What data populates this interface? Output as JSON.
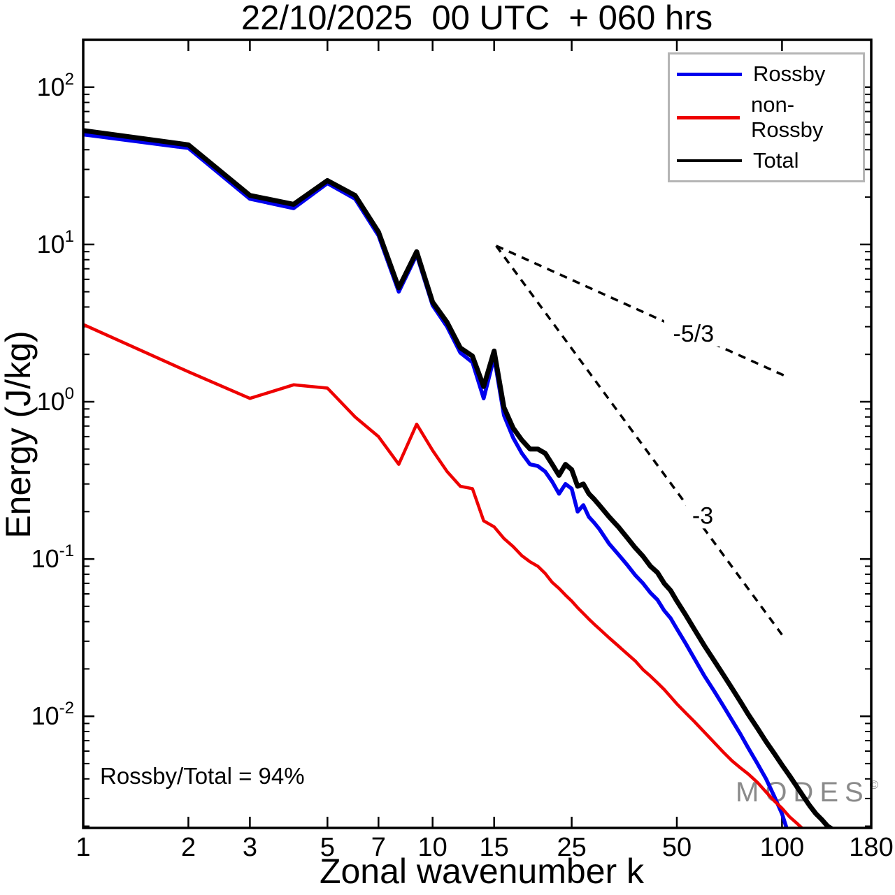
{
  "title": "22/10/2025  00 UTC  + 060 hrs",
  "x_axis_label": "Zonal wavenumber k",
  "y_axis_label": "Energy (J/kg)",
  "annotation": "Rossby/Total = 94%",
  "watermark": {
    "text": "MODES",
    "mark": "©"
  },
  "legend": {
    "items": [
      {
        "label": "Rossby",
        "color": "#0000ee",
        "sample_height": 5
      },
      {
        "label": "non-Rossby",
        "color": "#ee0000",
        "sample_height": 5
      },
      {
        "label": "Total",
        "color": "#000000",
        "sample_height": 4
      }
    ]
  },
  "chart_data": {
    "type": "line",
    "title": "22/10/2025  00 UTC  + 060 hrs",
    "xlabel": "Zonal wavenumber k",
    "ylabel": "Energy (J/kg)",
    "x_scale": "log",
    "y_scale": "log",
    "xlim": [
      1,
      180
    ],
    "ylim": [
      0.00195,
      200
    ],
    "x_ticks": [
      1,
      2,
      3,
      5,
      7,
      10,
      15,
      25,
      50,
      100,
      180
    ],
    "y_tick_exponents": [
      2,
      1,
      0,
      -1,
      -2
    ],
    "grid": false,
    "legend_position": "top-right",
    "series": [
      {
        "name": "Rossby",
        "color": "#0000ee",
        "width": 5.5,
        "x": [
          1,
          2,
          3,
          4,
          5,
          6,
          7,
          8,
          9,
          10,
          11,
          12,
          13,
          14,
          15,
          16,
          17,
          18,
          19,
          20,
          21,
          22,
          23,
          24,
          25,
          26,
          27,
          28,
          29,
          30,
          32,
          34,
          36,
          38,
          40,
          42,
          44,
          46,
          48,
          50,
          53,
          56,
          60,
          64,
          68,
          72,
          76,
          80,
          85,
          90,
          95,
          100,
          103
        ],
        "y": [
          50,
          41,
          19.5,
          17,
          24.5,
          19.5,
          11.4,
          5.0,
          8.6,
          4.1,
          3.0,
          2.05,
          1.78,
          1.05,
          1.92,
          0.82,
          0.59,
          0.47,
          0.4,
          0.39,
          0.36,
          0.31,
          0.26,
          0.3,
          0.28,
          0.2,
          0.22,
          0.185,
          0.17,
          0.155,
          0.125,
          0.107,
          0.092,
          0.079,
          0.07,
          0.061,
          0.055,
          0.047,
          0.042,
          0.036,
          0.029,
          0.0235,
          0.018,
          0.0144,
          0.0116,
          0.0094,
          0.0077,
          0.0063,
          0.005,
          0.004,
          0.0031,
          0.0024,
          0.00195
        ]
      },
      {
        "name": "non-Rossby",
        "color": "#ee0000",
        "width": 4.5,
        "x": [
          1,
          2,
          3,
          4,
          5,
          6,
          7,
          8,
          9,
          10,
          11,
          12,
          13,
          14,
          15,
          16,
          17,
          18,
          19,
          20,
          21,
          22,
          23,
          24,
          25,
          26,
          27,
          28,
          29,
          30,
          32,
          34,
          36,
          38,
          40,
          42,
          44,
          46,
          48,
          50,
          53,
          56,
          60,
          64,
          68,
          72,
          76,
          80,
          85,
          90,
          95,
          100,
          105,
          110,
          114
        ],
        "y": [
          3.1,
          1.55,
          1.05,
          1.28,
          1.22,
          0.8,
          0.6,
          0.4,
          0.72,
          0.49,
          0.36,
          0.29,
          0.28,
          0.175,
          0.16,
          0.135,
          0.12,
          0.105,
          0.096,
          0.09,
          0.081,
          0.071,
          0.065,
          0.059,
          0.054,
          0.049,
          0.045,
          0.0415,
          0.0385,
          0.036,
          0.0315,
          0.028,
          0.025,
          0.0225,
          0.0198,
          0.018,
          0.0163,
          0.0148,
          0.0133,
          0.012,
          0.0105,
          0.0093,
          0.0079,
          0.0068,
          0.0059,
          0.0052,
          0.0047,
          0.0043,
          0.0038,
          0.0033,
          0.0029,
          0.0026,
          0.0023,
          0.0021,
          0.00195
        ]
      },
      {
        "name": "Total",
        "color": "#000000",
        "width": 7,
        "x": [
          1,
          2,
          3,
          4,
          5,
          6,
          7,
          8,
          9,
          10,
          11,
          12,
          13,
          14,
          15,
          16,
          17,
          18,
          19,
          20,
          21,
          22,
          23,
          24,
          25,
          26,
          27,
          28,
          29,
          30,
          32,
          34,
          36,
          38,
          40,
          42,
          44,
          46,
          48,
          50,
          53,
          56,
          60,
          64,
          68,
          72,
          76,
          80,
          85,
          90,
          95,
          100,
          105,
          110,
          115,
          120,
          125,
          130,
          135,
          140
        ],
        "y": [
          53,
          43,
          20.5,
          18,
          25.5,
          20.5,
          12,
          5.3,
          9.0,
          4.3,
          3.2,
          2.2,
          1.95,
          1.25,
          2.1,
          0.92,
          0.68,
          0.57,
          0.5,
          0.5,
          0.47,
          0.4,
          0.34,
          0.4,
          0.37,
          0.29,
          0.3,
          0.26,
          0.24,
          0.22,
          0.185,
          0.16,
          0.137,
          0.118,
          0.104,
          0.09,
          0.082,
          0.07,
          0.063,
          0.054,
          0.044,
          0.036,
          0.028,
          0.0225,
          0.0183,
          0.015,
          0.0124,
          0.0103,
          0.0084,
          0.0069,
          0.0058,
          0.0049,
          0.0042,
          0.0036,
          0.0031,
          0.0027,
          0.0024,
          0.0022,
          0.002,
          0.0019
        ]
      }
    ],
    "reference_lines": [
      {
        "label": "-5/3",
        "x": [
          15.2,
          102
        ],
        "y": [
          9.8,
          1.46
        ],
        "label_at": [
          55.8,
          2.73
        ]
      },
      {
        "label": "-3",
        "x": [
          15.2,
          100
        ],
        "y": [
          9.8,
          0.033
        ],
        "label_at": [
          59.3,
          0.19
        ]
      }
    ]
  }
}
